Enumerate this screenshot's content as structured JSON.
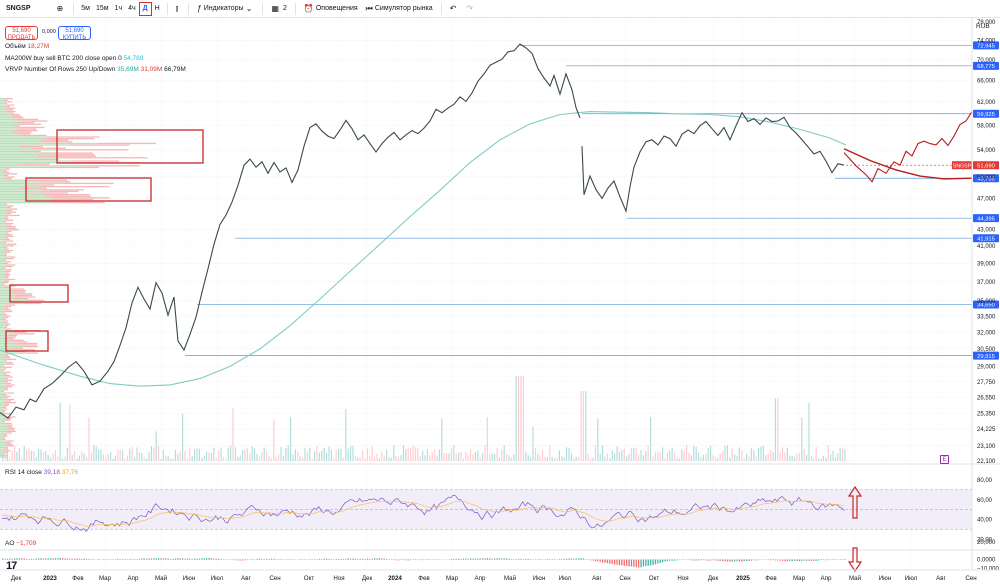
{
  "toolbar": {
    "symbol": "SNGSP",
    "timeframes": [
      "5м",
      "15м",
      "1ч",
      "4ч",
      "Д",
      "Н"
    ],
    "active_timeframe": "Д",
    "indicators_label": "Индикаторы",
    "templates_count": "2",
    "alerts_label": "Оповещения",
    "replay_label": "Симулятор рынка"
  },
  "trade": {
    "sell_price": "51,690",
    "sell_label": "ПРОДАТЬ",
    "spread": "0,000",
    "buy_price": "51,690",
    "buy_label": "КУПИТЬ"
  },
  "legends": {
    "volume": {
      "label": "Объём",
      "value": "18,27M"
    },
    "ma": {
      "label": "MA200W buy sell BTC 200 close open 0",
      "value": "54,789"
    },
    "vrvp": {
      "label": "VRVP Number Of Rows 250 Up/Down",
      "up": "35,69M",
      "down": "31,09M",
      "total": "66,79M"
    },
    "rsi": {
      "label": "RSI 14 close",
      "value": "39,18",
      "ma_value": "37,76"
    },
    "ao": {
      "label": "AO",
      "value": "−1,709"
    }
  },
  "chart_data": {
    "type": "line",
    "title": "",
    "currency": "RUB",
    "x_axis_labels": [
      "Дек",
      "2023",
      "Фев",
      "Мар",
      "Апр",
      "Май",
      "Июн",
      "Июл",
      "Авг",
      "Сен",
      "Окт",
      "Ноя",
      "Дек",
      "2024",
      "Фев",
      "Мар",
      "Апр",
      "Май",
      "Июн",
      "Июл",
      "Авг",
      "Сен",
      "Окт",
      "Ноя",
      "Дек",
      "2025",
      "Фев",
      "Мар",
      "Апр",
      "Май",
      "Июн",
      "Июл",
      "Авг",
      "Сен"
    ],
    "y_axis_labels": [
      "78,000",
      "74,000",
      "70,000",
      "66,000",
      "62,000",
      "58,000",
      "54,000",
      "50,000",
      "47,000",
      "43,000",
      "41,000",
      "39,000",
      "37,000",
      "35,000",
      "33,500",
      "32,000",
      "30,500",
      "29,000",
      "27,750",
      "26,550",
      "25,350",
      "24,225",
      "23,100",
      "22,100"
    ],
    "ylim": [
      22100,
      78000
    ],
    "y_scale": "log",
    "last_price": {
      "symbol": "SNGSP",
      "value": "51,690"
    },
    "level_lines": [
      {
        "value": 72945,
        "label": "72,945",
        "start": "Май"
      },
      {
        "value": 68775,
        "label": "68,775",
        "start": "Июл"
      },
      {
        "value": 59925,
        "label": "59,925",
        "start": "Июл"
      },
      {
        "value": 49795,
        "label": "49,795",
        "start": "Апр"
      },
      {
        "value": 44395,
        "label": "44,395",
        "start": "Авг"
      },
      {
        "value": 41915,
        "label": "41,915",
        "start": "Июл"
      },
      {
        "value": 34650,
        "label": "34,650",
        "start": "Июн"
      },
      {
        "value": 29915,
        "label": "29,915",
        "start": "Июн"
      }
    ],
    "price_path": [
      [
        0,
        25400
      ],
      [
        8,
        25000
      ],
      [
        16,
        25800
      ],
      [
        24,
        25600
      ],
      [
        30,
        26400
      ],
      [
        36,
        26200
      ],
      [
        44,
        27200
      ],
      [
        52,
        27600
      ],
      [
        60,
        28200
      ],
      [
        68,
        28900
      ],
      [
        76,
        29400
      ],
      [
        84,
        28600
      ],
      [
        92,
        27500
      ],
      [
        100,
        27800
      ],
      [
        108,
        28600
      ],
      [
        114,
        29400
      ],
      [
        120,
        30800
      ],
      [
        126,
        32400
      ],
      [
        132,
        34800
      ],
      [
        138,
        36400
      ],
      [
        144,
        35200
      ],
      [
        150,
        34200
      ],
      [
        156,
        36900
      ],
      [
        162,
        35800
      ],
      [
        168,
        33600
      ],
      [
        174,
        35400
      ],
      [
        178,
        31200
      ],
      [
        184,
        30400
      ],
      [
        190,
        31800
      ],
      [
        196,
        33400
      ],
      [
        202,
        35900
      ],
      [
        208,
        38400
      ],
      [
        214,
        41200
      ],
      [
        220,
        43600
      ],
      [
        226,
        44800
      ],
      [
        232,
        46500
      ],
      [
        238,
        48800
      ],
      [
        244,
        51700
      ],
      [
        250,
        52600
      ],
      [
        256,
        51400
      ],
      [
        262,
        52200
      ],
      [
        268,
        50500
      ],
      [
        274,
        52100
      ],
      [
        280,
        50700
      ],
      [
        286,
        51300
      ],
      [
        292,
        49200
      ],
      [
        298,
        51000
      ],
      [
        304,
        54600
      ],
      [
        310,
        57600
      ],
      [
        316,
        58200
      ],
      [
        322,
        57000
      ],
      [
        328,
        56200
      ],
      [
        334,
        55800
      ],
      [
        340,
        57200
      ],
      [
        346,
        58800
      ],
      [
        352,
        57400
      ],
      [
        358,
        55600
      ],
      [
        364,
        56400
      ],
      [
        370,
        55000
      ],
      [
        376,
        53700
      ],
      [
        382,
        55000
      ],
      [
        388,
        56000
      ],
      [
        394,
        56800
      ],
      [
        400,
        55600
      ],
      [
        406,
        56400
      ],
      [
        412,
        57100
      ],
      [
        418,
        56600
      ],
      [
        424,
        57500
      ],
      [
        430,
        58700
      ],
      [
        436,
        60700
      ],
      [
        442,
        60100
      ],
      [
        448,
        60900
      ],
      [
        454,
        61600
      ],
      [
        460,
        62900
      ],
      [
        466,
        62100
      ],
      [
        472,
        63600
      ],
      [
        478,
        65800
      ],
      [
        484,
        67200
      ],
      [
        490,
        68900
      ],
      [
        496,
        69500
      ],
      [
        502,
        70100
      ],
      [
        508,
        71600
      ],
      [
        514,
        71800
      ],
      [
        520,
        73200
      ],
      [
        526,
        72400
      ],
      [
        532,
        71300
      ],
      [
        538,
        68200
      ],
      [
        544,
        66400
      ],
      [
        550,
        64900
      ],
      [
        554,
        66900
      ],
      [
        560,
        63400
      ],
      [
        566,
        67200
      ],
      [
        572,
        64200
      ],
      [
        576,
        61000
      ],
      [
        580,
        59200
      ]
    ],
    "price_path_2": [
      [
        582,
        54600
      ],
      [
        584,
        47500
      ],
      [
        590,
        50100
      ],
      [
        596,
        48200
      ],
      [
        602,
        47000
      ],
      [
        608,
        48400
      ],
      [
        614,
        49400
      ],
      [
        620,
        47200
      ],
      [
        626,
        45300
      ],
      [
        630,
        48600
      ],
      [
        634,
        51400
      ],
      [
        640,
        53700
      ],
      [
        646,
        55300
      ],
      [
        652,
        55600
      ],
      [
        658,
        54800
      ],
      [
        664,
        56200
      ],
      [
        670,
        55800
      ],
      [
        676,
        54600
      ],
      [
        682,
        56500
      ],
      [
        688,
        57200
      ],
      [
        694,
        56600
      ],
      [
        700,
        57900
      ],
      [
        706,
        58600
      ],
      [
        712,
        57400
      ],
      [
        718,
        56300
      ],
      [
        724,
        57600
      ],
      [
        730,
        55600
      ],
      [
        736,
        57900
      ],
      [
        742,
        60100
      ],
      [
        748,
        58600
      ],
      [
        754,
        59100
      ],
      [
        760,
        58100
      ],
      [
        766,
        59200
      ],
      [
        772,
        58600
      ],
      [
        778,
        58700
      ],
      [
        784,
        59300
      ],
      [
        790,
        57600
      ],
      [
        796,
        56700
      ],
      [
        802,
        55600
      ],
      [
        808,
        54500
      ],
      [
        814,
        53400
      ],
      [
        820,
        53800
      ],
      [
        826,
        52300
      ],
      [
        832,
        50600
      ],
      [
        838,
        51900
      ],
      [
        844,
        51700
      ]
    ],
    "ma_path": [
      [
        0,
        30400
      ],
      [
        40,
        29200
      ],
      [
        80,
        28200
      ],
      [
        110,
        27600
      ],
      [
        140,
        27400
      ],
      [
        170,
        27500
      ],
      [
        200,
        28000
      ],
      [
        230,
        29000
      ],
      [
        260,
        30500
      ],
      [
        290,
        32600
      ],
      [
        320,
        35200
      ],
      [
        350,
        38100
      ],
      [
        380,
        41200
      ],
      [
        410,
        44600
      ],
      [
        440,
        48100
      ],
      [
        470,
        52100
      ],
      [
        500,
        55600
      ],
      [
        530,
        58200
      ],
      [
        560,
        59800
      ],
      [
        590,
        60300
      ],
      [
        620,
        60200
      ],
      [
        650,
        60100
      ],
      [
        680,
        59900
      ],
      [
        710,
        59800
      ],
      [
        740,
        59400
      ],
      [
        770,
        58500
      ],
      [
        800,
        57300
      ],
      [
        830,
        55900
      ],
      [
        846,
        54789
      ]
    ],
    "forecast_path": [
      [
        844,
        53600
      ],
      [
        856,
        51600
      ],
      [
        866,
        50300
      ],
      [
        872,
        49300
      ],
      [
        878,
        51200
      ],
      [
        886,
        50500
      ],
      [
        894,
        52200
      ],
      [
        900,
        51700
      ],
      [
        906,
        53800
      ],
      [
        912,
        53100
      ],
      [
        918,
        55000
      ],
      [
        924,
        55400
      ],
      [
        930,
        55000
      ],
      [
        936,
        54800
      ],
      [
        942,
        55800
      ],
      [
        948,
        54700
      ],
      [
        954,
        56200
      ],
      [
        960,
        58100
      ],
      [
        966,
        58700
      ],
      [
        972,
        60300
      ]
    ],
    "forecast_path_2": [
      [
        844,
        54200
      ],
      [
        870,
        52400
      ],
      [
        896,
        51000
      ],
      [
        920,
        50100
      ],
      [
        944,
        49700
      ],
      [
        972,
        49800
      ]
    ],
    "rsi": {
      "levels": [
        "80,00",
        "60,00",
        "40,00",
        "20,00"
      ],
      "ylim": [
        15,
        85
      ],
      "upper_band": 70,
      "lower_band": 30
    },
    "ao": {
      "levels": [
        "20,000",
        "0,0000",
        "−10,000"
      ],
      "ylim": [
        -12,
        22
      ]
    }
  }
}
